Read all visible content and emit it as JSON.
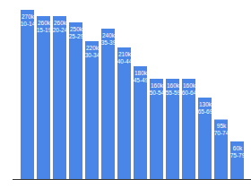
{
  "chart_data": {
    "type": "bar",
    "categories": [
      "10-14",
      "15-19",
      "20-24",
      "25-29",
      "30-34",
      "35-39",
      "40-44",
      "45-49",
      "50-54",
      "55-59",
      "60-64",
      "65-69",
      "70-74",
      "75-79"
    ],
    "values": [
      270000,
      260000,
      260000,
      250000,
      220000,
      240000,
      210000,
      180000,
      160000,
      160000,
      160000,
      130000,
      95000,
      60000
    ],
    "value_labels": [
      "270k",
      "260k",
      "260k",
      "250k",
      "220k",
      "240k",
      "210k",
      "180k",
      "160k",
      "160k",
      "160k",
      "130k",
      "95k",
      "60k"
    ],
    "color": "#4a86e8",
    "ylim": [
      0,
      280000
    ],
    "grid": false,
    "data_labels": true,
    "tick_labels": false
  }
}
